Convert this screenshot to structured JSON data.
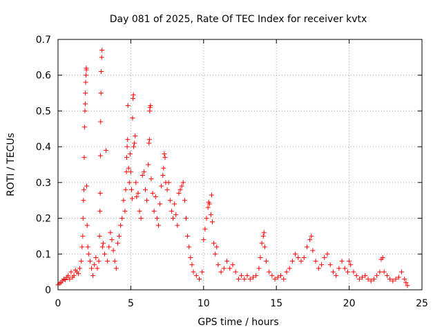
{
  "chart_data": {
    "type": "scatter",
    "title": "Day 081 of 2025, Rate Of TEC Index for receiver kvtx",
    "xlabel": "GPS time / hours",
    "ylabel": "ROTI / TECUs",
    "xlim": [
      0,
      25
    ],
    "ylim": [
      0,
      0.7
    ],
    "xticks": [
      0,
      5,
      10,
      15,
      20,
      25
    ],
    "yticks": [
      0,
      0.1,
      0.2,
      0.3,
      0.4,
      0.5,
      0.6,
      0.7
    ],
    "xtick_labels": [
      "0",
      "5",
      "10",
      "15",
      "20",
      "25"
    ],
    "ytick_labels": [
      "0",
      "0.1",
      "0.2",
      "0.3",
      "0.4",
      "0.5",
      "0.6",
      "0.7"
    ],
    "grid": true,
    "marker": "+",
    "color": "#ff0000",
    "series": [
      {
        "name": "ROTI",
        "points": [
          [
            0.0,
            0.014
          ],
          [
            0.1,
            0.018
          ],
          [
            0.2,
            0.02
          ],
          [
            0.3,
            0.025
          ],
          [
            0.4,
            0.03
          ],
          [
            0.5,
            0.028
          ],
          [
            0.6,
            0.035
          ],
          [
            0.7,
            0.04
          ],
          [
            0.8,
            0.03
          ],
          [
            0.9,
            0.05
          ],
          [
            1.0,
            0.035
          ],
          [
            1.1,
            0.04
          ],
          [
            1.2,
            0.055
          ],
          [
            1.3,
            0.05
          ],
          [
            1.4,
            0.045
          ],
          [
            1.5,
            0.06
          ],
          [
            1.6,
            0.08
          ],
          [
            1.65,
            0.12
          ],
          [
            1.7,
            0.15
          ],
          [
            1.72,
            0.2
          ],
          [
            1.75,
            0.25
          ],
          [
            1.78,
            0.28
          ],
          [
            1.8,
            0.37
          ],
          [
            1.82,
            0.455
          ],
          [
            1.85,
            0.5
          ],
          [
            1.87,
            0.52
          ],
          [
            1.88,
            0.55
          ],
          [
            1.9,
            0.58
          ],
          [
            1.92,
            0.6
          ],
          [
            1.94,
            0.62
          ],
          [
            1.95,
            0.615
          ],
          [
            1.97,
            0.29
          ],
          [
            2.0,
            0.18
          ],
          [
            2.05,
            0.12
          ],
          [
            2.1,
            0.1
          ],
          [
            2.2,
            0.08
          ],
          [
            2.3,
            0.06
          ],
          [
            2.4,
            0.04
          ],
          [
            2.5,
            0.07
          ],
          [
            2.6,
            0.09
          ],
          [
            2.7,
            0.06
          ],
          [
            2.8,
            0.08
          ],
          [
            2.85,
            0.15
          ],
          [
            2.88,
            0.22
          ],
          [
            2.9,
            0.27
          ],
          [
            2.92,
            0.375
          ],
          [
            2.93,
            0.47
          ],
          [
            2.95,
            0.55
          ],
          [
            2.97,
            0.61
          ],
          [
            3.0,
            0.65
          ],
          [
            3.02,
            0.67
          ],
          [
            3.05,
            0.12
          ],
          [
            3.1,
            0.13
          ],
          [
            3.2,
            0.1
          ],
          [
            3.3,
            0.39
          ],
          [
            3.4,
            0.08
          ],
          [
            3.5,
            0.12
          ],
          [
            3.6,
            0.16
          ],
          [
            3.7,
            0.14
          ],
          [
            3.8,
            0.11
          ],
          [
            3.9,
            0.08
          ],
          [
            4.0,
            0.06
          ],
          [
            4.1,
            0.13
          ],
          [
            4.2,
            0.15
          ],
          [
            4.3,
            0.18
          ],
          [
            4.4,
            0.2
          ],
          [
            4.5,
            0.25
          ],
          [
            4.6,
            0.22
          ],
          [
            4.65,
            0.28
          ],
          [
            4.7,
            0.33
          ],
          [
            4.72,
            0.37
          ],
          [
            4.75,
            0.4
          ],
          [
            4.78,
            0.42
          ],
          [
            4.8,
            0.515
          ],
          [
            4.85,
            0.34
          ],
          [
            4.9,
            0.3
          ],
          [
            4.95,
            0.38
          ],
          [
            5.0,
            0.33
          ],
          [
            5.05,
            0.28
          ],
          [
            5.1,
            0.255
          ],
          [
            5.12,
            0.48
          ],
          [
            5.15,
            0.535
          ],
          [
            5.18,
            0.545
          ],
          [
            5.2,
            0.4
          ],
          [
            5.25,
            0.41
          ],
          [
            5.3,
            0.43
          ],
          [
            5.35,
            0.3
          ],
          [
            5.4,
            0.26
          ],
          [
            5.5,
            0.27
          ],
          [
            5.6,
            0.22
          ],
          [
            5.7,
            0.2
          ],
          [
            5.8,
            0.32
          ],
          [
            5.9,
            0.33
          ],
          [
            6.0,
            0.28
          ],
          [
            6.1,
            0.25
          ],
          [
            6.2,
            0.35
          ],
          [
            6.25,
            0.41
          ],
          [
            6.28,
            0.42
          ],
          [
            6.3,
            0.5
          ],
          [
            6.32,
            0.51
          ],
          [
            6.35,
            0.515
          ],
          [
            6.4,
            0.31
          ],
          [
            6.5,
            0.27
          ],
          [
            6.6,
            0.22
          ],
          [
            6.7,
            0.26
          ],
          [
            6.8,
            0.2
          ],
          [
            6.9,
            0.18
          ],
          [
            7.0,
            0.24
          ],
          [
            7.1,
            0.29
          ],
          [
            7.2,
            0.32
          ],
          [
            7.25,
            0.34
          ],
          [
            7.3,
            0.38
          ],
          [
            7.35,
            0.37
          ],
          [
            7.4,
            0.3
          ],
          [
            7.5,
            0.28
          ],
          [
            7.6,
            0.3
          ],
          [
            7.7,
            0.25
          ],
          [
            7.8,
            0.22
          ],
          [
            7.9,
            0.2
          ],
          [
            8.0,
            0.24
          ],
          [
            8.1,
            0.21
          ],
          [
            8.2,
            0.18
          ],
          [
            8.3,
            0.27
          ],
          [
            8.4,
            0.28
          ],
          [
            8.5,
            0.29
          ],
          [
            8.6,
            0.3
          ],
          [
            8.7,
            0.25
          ],
          [
            8.8,
            0.2
          ],
          [
            8.9,
            0.15
          ],
          [
            9.0,
            0.12
          ],
          [
            9.1,
            0.09
          ],
          [
            9.2,
            0.07
          ],
          [
            9.3,
            0.05
          ],
          [
            9.5,
            0.04
          ],
          [
            9.7,
            0.03
          ],
          [
            9.9,
            0.05
          ],
          [
            10.0,
            0.14
          ],
          [
            10.1,
            0.17
          ],
          [
            10.2,
            0.2
          ],
          [
            10.3,
            0.23
          ],
          [
            10.35,
            0.245
          ],
          [
            10.4,
            0.24
          ],
          [
            10.5,
            0.21
          ],
          [
            10.55,
            0.265
          ],
          [
            10.6,
            0.19
          ],
          [
            10.7,
            0.13
          ],
          [
            10.8,
            0.1
          ],
          [
            10.9,
            0.12
          ],
          [
            11.0,
            0.07
          ],
          [
            11.2,
            0.05
          ],
          [
            11.4,
            0.06
          ],
          [
            11.6,
            0.08
          ],
          [
            11.8,
            0.06
          ],
          [
            12.0,
            0.07
          ],
          [
            12.2,
            0.05
          ],
          [
            12.4,
            0.03
          ],
          [
            12.6,
            0.04
          ],
          [
            12.8,
            0.03
          ],
          [
            13.0,
            0.04
          ],
          [
            13.2,
            0.03
          ],
          [
            13.4,
            0.035
          ],
          [
            13.6,
            0.04
          ],
          [
            13.8,
            0.06
          ],
          [
            13.9,
            0.09
          ],
          [
            14.0,
            0.13
          ],
          [
            14.1,
            0.15
          ],
          [
            14.15,
            0.16
          ],
          [
            14.2,
            0.12
          ],
          [
            14.3,
            0.08
          ],
          [
            14.5,
            0.05
          ],
          [
            14.7,
            0.04
          ],
          [
            14.9,
            0.03
          ],
          [
            15.1,
            0.035
          ],
          [
            15.3,
            0.04
          ],
          [
            15.5,
            0.03
          ],
          [
            15.7,
            0.05
          ],
          [
            15.9,
            0.06
          ],
          [
            16.1,
            0.08
          ],
          [
            16.3,
            0.1
          ],
          [
            16.5,
            0.09
          ],
          [
            16.7,
            0.08
          ],
          [
            16.9,
            0.09
          ],
          [
            17.1,
            0.12
          ],
          [
            17.3,
            0.14
          ],
          [
            17.4,
            0.15
          ],
          [
            17.5,
            0.11
          ],
          [
            17.7,
            0.08
          ],
          [
            17.9,
            0.06
          ],
          [
            18.1,
            0.07
          ],
          [
            18.3,
            0.09
          ],
          [
            18.5,
            0.1
          ],
          [
            18.7,
            0.07
          ],
          [
            18.9,
            0.05
          ],
          [
            19.1,
            0.04
          ],
          [
            19.3,
            0.06
          ],
          [
            19.5,
            0.08
          ],
          [
            19.7,
            0.06
          ],
          [
            19.9,
            0.05
          ],
          [
            20.0,
            0.08
          ],
          [
            20.1,
            0.07
          ],
          [
            20.3,
            0.05
          ],
          [
            20.5,
            0.04
          ],
          [
            20.7,
            0.03
          ],
          [
            20.9,
            0.035
          ],
          [
            21.1,
            0.04
          ],
          [
            21.3,
            0.03
          ],
          [
            21.5,
            0.025
          ],
          [
            21.7,
            0.03
          ],
          [
            21.9,
            0.04
          ],
          [
            22.1,
            0.05
          ],
          [
            22.2,
            0.085
          ],
          [
            22.3,
            0.09
          ],
          [
            22.4,
            0.05
          ],
          [
            22.6,
            0.04
          ],
          [
            22.8,
            0.03
          ],
          [
            23.0,
            0.025
          ],
          [
            23.2,
            0.03
          ],
          [
            23.4,
            0.035
          ],
          [
            23.6,
            0.05
          ],
          [
            23.8,
            0.03
          ],
          [
            23.9,
            0.02
          ],
          [
            24.0,
            0.012
          ]
        ]
      }
    ]
  }
}
